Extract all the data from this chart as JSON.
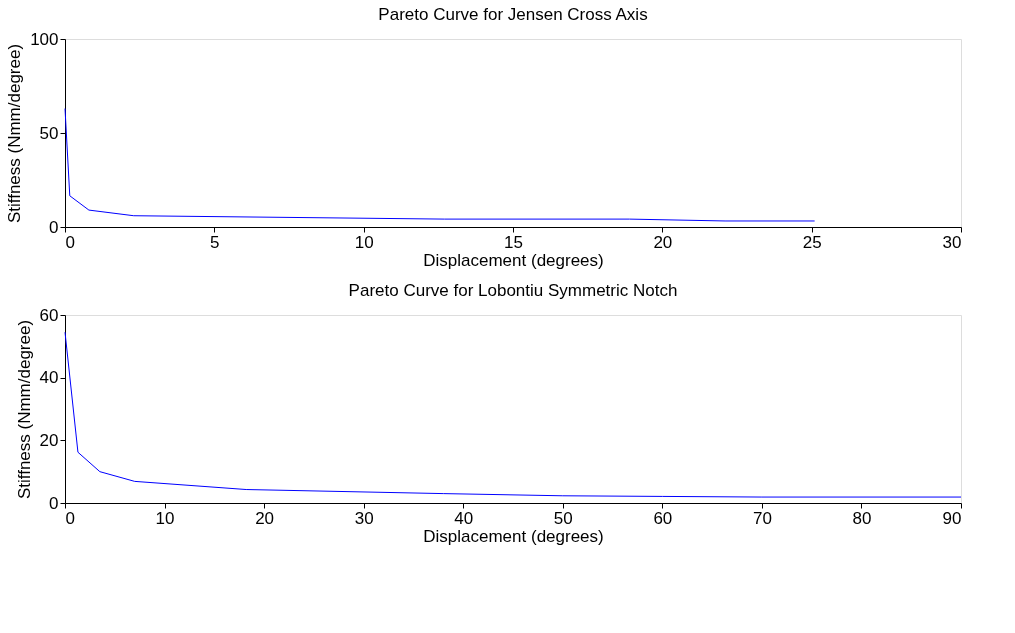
{
  "chart_data": [
    {
      "type": "line",
      "title": "Pareto Curve for Jensen Cross Axis",
      "xlabel": "Displacement (degrees)",
      "ylabel": "Stiffness (Nmm/degree)",
      "xlim": [
        0,
        30
      ],
      "xticks": [
        0,
        5,
        10,
        15,
        20,
        25,
        30
      ],
      "ylim": [
        0,
        100
      ],
      "yticks": [
        0,
        50,
        100
      ],
      "grid": false,
      "legend": false,
      "series": [
        {
          "color": "#0000ff",
          "x": [
            0,
            0.16,
            0.8,
            2.3,
            12.7,
            18.9,
            22.1,
            25.1
          ],
          "values": [
            63,
            16.6,
            9,
            6,
            4.2,
            4.2,
            3.2,
            3.2
          ]
        }
      ]
    },
    {
      "type": "line",
      "title": "Pareto Curve for Lobontiu Symmetric Notch",
      "xlabel": "Displacement (degrees)",
      "ylabel": "Stiffness (Nmm/degree)",
      "xlim": [
        0,
        90
      ],
      "xticks": [
        0,
        10,
        20,
        30,
        40,
        50,
        60,
        70,
        80,
        90
      ],
      "ylim": [
        0,
        60
      ],
      "yticks": [
        0,
        20,
        40,
        60
      ],
      "grid": false,
      "legend": false,
      "series": [
        {
          "color": "#0000ff",
          "x": [
            0,
            1.3,
            3.5,
            7,
            18.2,
            38,
            50,
            60,
            70,
            90
          ],
          "values": [
            54.5,
            16.2,
            10,
            6.9,
            4.3,
            3.0,
            2.3,
            2.1,
            1.9,
            1.9
          ]
        }
      ]
    }
  ]
}
